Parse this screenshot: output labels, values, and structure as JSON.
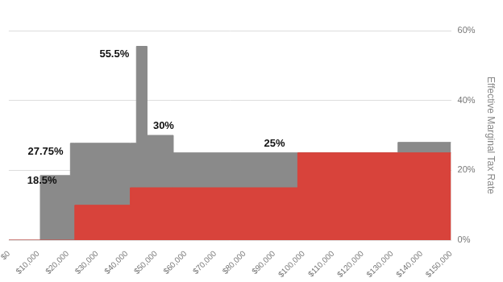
{
  "chart_data": {
    "type": "area",
    "line_style": "step",
    "ylabel": "Effective Marginal Tax Rate",
    "x": [
      0,
      10700,
      20900,
      22400,
      41200,
      43300,
      46900,
      55800,
      98000,
      132000,
      150000
    ],
    "series": [
      {
        "color": "#8a8a8a",
        "values": [
          0,
          18.5,
          27.75,
          27.75,
          27.75,
          55.5,
          30,
          25,
          25,
          28,
          28
        ]
      },
      {
        "color": "#d8433b",
        "values": [
          0,
          0,
          0,
          10,
          15,
          15,
          15,
          15,
          25,
          25,
          25
        ]
      }
    ],
    "annotations": [
      {
        "text": "18.5%",
        "value": 18.5,
        "x": 11300
      },
      {
        "text": "27.75%",
        "value": 27.75,
        "x": 12500
      },
      {
        "text": "55.5%",
        "value": 55.5,
        "x": 35800
      },
      {
        "text": "30%",
        "value": 30,
        "x": 52500
      },
      {
        "text": "25%",
        "value": 25,
        "x": 90100
      }
    ],
    "xlim": [
      0,
      150000
    ],
    "xticks": [
      {
        "value": 0,
        "label": "$0"
      },
      {
        "value": 10000,
        "label": "$10,000"
      },
      {
        "value": 20000,
        "label": "$20,000"
      },
      {
        "value": 30000,
        "label": "$30,000"
      },
      {
        "value": 40000,
        "label": "$40,000"
      },
      {
        "value": 50000,
        "label": "$50,000"
      },
      {
        "value": 60000,
        "label": "$60,000"
      },
      {
        "value": 70000,
        "label": "$70,000"
      },
      {
        "value": 80000,
        "label": "$80,000"
      },
      {
        "value": 90000,
        "label": "$90,000"
      },
      {
        "value": 100000,
        "label": "$100,000"
      },
      {
        "value": 110000,
        "label": "$110,000"
      },
      {
        "value": 120000,
        "label": "$120,000"
      },
      {
        "value": 130000,
        "label": "$130,000"
      },
      {
        "value": 140000,
        "label": "$140,000"
      },
      {
        "value": 150000,
        "label": "$150,000"
      }
    ],
    "ylim": [
      0,
      60
    ],
    "yticks": [
      {
        "value": 0,
        "label": "0%"
      },
      {
        "value": 20,
        "label": "20%"
      },
      {
        "value": 40,
        "label": "40%"
      },
      {
        "value": 60,
        "label": "60%"
      }
    ],
    "grid": true
  }
}
